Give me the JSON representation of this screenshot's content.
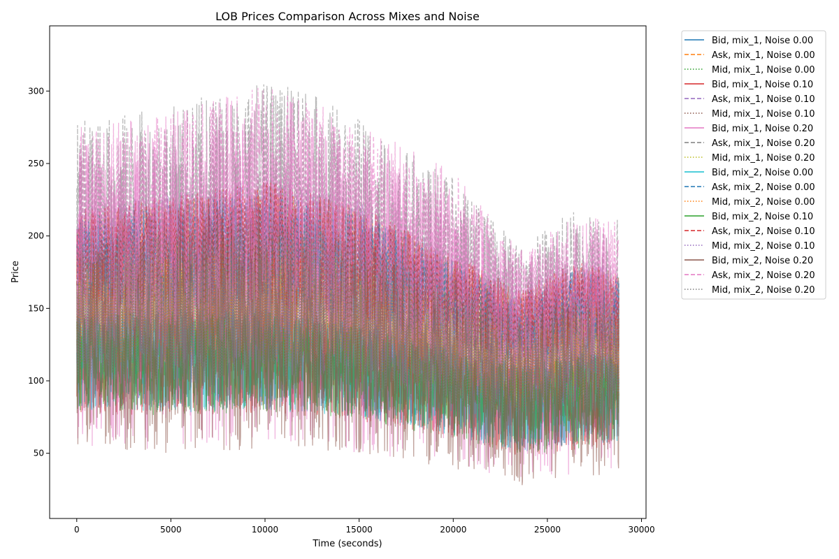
{
  "chart_data": {
    "type": "line",
    "title": "LOB Prices Comparison Across Mixes and Noise",
    "xlabel": "Time (seconds)",
    "ylabel": "Price",
    "xlim": [
      -1440,
      30240
    ],
    "ylim": [
      5,
      345
    ],
    "xticks": [
      0,
      5000,
      10000,
      15000,
      20000,
      25000,
      30000
    ],
    "yticks": [
      50,
      100,
      150,
      200,
      250,
      300
    ],
    "grid": false,
    "legend_position": "outside-right",
    "x_range": [
      0,
      28800
    ],
    "series": [
      {
        "name": "Bid, mix_1, Noise 0.00",
        "color": "#1f77b4",
        "dash": "solid",
        "envelope": {
          "x": [
            0,
            5000,
            10000,
            15000,
            20000,
            23500,
            26500,
            28800
          ],
          "low": [
            82,
            78,
            80,
            75,
            62,
            50,
            55,
            58
          ],
          "high": [
            150,
            150,
            150,
            140,
            125,
            112,
            120,
            118
          ]
        }
      },
      {
        "name": "Ask, mix_1, Noise 0.00",
        "color": "#ff7f0e",
        "dash": "dashed",
        "envelope": {
          "x": [
            0,
            5000,
            10000,
            15000,
            20000,
            23500,
            26500,
            28800
          ],
          "low": [
            150,
            150,
            150,
            140,
            125,
            112,
            120,
            118
          ],
          "high": [
            215,
            225,
            235,
            220,
            185,
            160,
            180,
            175
          ]
        }
      },
      {
        "name": "Mid, mix_1, Noise 0.00",
        "color": "#2ca02c",
        "dash": "dotted",
        "envelope": {
          "x": [
            0,
            5000,
            10000,
            15000,
            20000,
            23500,
            26500,
            28800
          ],
          "low": [
            112,
            110,
            112,
            105,
            92,
            80,
            88,
            86
          ],
          "high": [
            185,
            188,
            192,
            180,
            155,
            135,
            150,
            146
          ]
        }
      },
      {
        "name": "Bid, mix_1, Noise 0.10",
        "color": "#d62728",
        "dash": "solid",
        "envelope": {
          "x": [
            0,
            5000,
            10000,
            15000,
            20000,
            23500,
            26500,
            28800
          ],
          "low": [
            78,
            75,
            78,
            72,
            60,
            48,
            52,
            55
          ],
          "high": [
            145,
            148,
            148,
            138,
            122,
            110,
            118,
            116
          ]
        }
      },
      {
        "name": "Ask, mix_1, Noise 0.10",
        "color": "#9467bd",
        "dash": "dashed",
        "envelope": {
          "x": [
            0,
            5000,
            10000,
            15000,
            20000,
            23500,
            26500,
            28800
          ],
          "low": [
            152,
            152,
            152,
            142,
            126,
            114,
            122,
            120
          ],
          "high": [
            220,
            230,
            240,
            225,
            190,
            165,
            185,
            180
          ]
        }
      },
      {
        "name": "Mid, mix_1, Noise 0.10",
        "color": "#8c564b",
        "dash": "dotted",
        "envelope": {
          "x": [
            0,
            5000,
            10000,
            15000,
            20000,
            23500,
            26500,
            28800
          ],
          "low": [
            110,
            108,
            110,
            104,
            90,
            78,
            86,
            84
          ],
          "high": [
            188,
            190,
            195,
            182,
            158,
            138,
            152,
            148
          ]
        }
      },
      {
        "name": "Bid, mix_1, Noise 0.20",
        "color": "#e377c2",
        "dash": "solid",
        "envelope": {
          "x": [
            0,
            5000,
            10000,
            15000,
            20000,
            23500,
            26500,
            28800
          ],
          "low": [
            55,
            52,
            55,
            50,
            42,
            30,
            35,
            38
          ],
          "high": [
            265,
            270,
            280,
            265,
            225,
            185,
            210,
            205
          ]
        }
      },
      {
        "name": "Ask, mix_1, Noise 0.20",
        "color": "#7f7f7f",
        "dash": "dashed",
        "envelope": {
          "x": [
            0,
            5000,
            10000,
            15000,
            20000,
            23500,
            26500,
            28800
          ],
          "low": [
            130,
            128,
            130,
            122,
            105,
            88,
            98,
            96
          ],
          "high": [
            280,
            290,
            310,
            285,
            240,
            195,
            220,
            215
          ]
        }
      },
      {
        "name": "Mid, mix_1, Noise 0.20",
        "color": "#bcbd22",
        "dash": "dotted",
        "envelope": {
          "x": [
            0,
            5000,
            10000,
            15000,
            20000,
            23500,
            26500,
            28800
          ],
          "low": [
            105,
            102,
            105,
            98,
            86,
            72,
            80,
            78
          ],
          "high": [
            190,
            195,
            198,
            185,
            160,
            140,
            155,
            150
          ]
        }
      },
      {
        "name": "Bid, mix_2, Noise 0.00",
        "color": "#17becf",
        "dash": "solid",
        "envelope": {
          "x": [
            0,
            5000,
            10000,
            15000,
            20000,
            23500,
            26500,
            28800
          ],
          "low": [
            80,
            78,
            80,
            74,
            62,
            50,
            55,
            58
          ],
          "high": [
            148,
            150,
            150,
            140,
            124,
            112,
            120,
            118
          ]
        }
      },
      {
        "name": "Ask, mix_2, Noise 0.00",
        "color": "#1f77b4",
        "dash": "dashed",
        "envelope": {
          "x": [
            0,
            5000,
            10000,
            15000,
            20000,
            23500,
            26500,
            28800
          ],
          "low": [
            150,
            150,
            150,
            140,
            125,
            112,
            120,
            118
          ],
          "high": [
            212,
            222,
            232,
            218,
            183,
            158,
            178,
            173
          ]
        }
      },
      {
        "name": "Mid, mix_2, Noise 0.00",
        "color": "#ff7f0e",
        "dash": "dotted",
        "envelope": {
          "x": [
            0,
            5000,
            10000,
            15000,
            20000,
            23500,
            26500,
            28800
          ],
          "low": [
            112,
            110,
            112,
            105,
            92,
            80,
            88,
            86
          ],
          "high": [
            183,
            186,
            190,
            178,
            153,
            133,
            148,
            144
          ]
        }
      },
      {
        "name": "Bid, mix_2, Noise 0.10",
        "color": "#2ca02c",
        "dash": "solid",
        "envelope": {
          "x": [
            0,
            5000,
            10000,
            15000,
            20000,
            23500,
            26500,
            28800
          ],
          "low": [
            78,
            76,
            78,
            72,
            60,
            48,
            53,
            56
          ],
          "high": [
            146,
            148,
            148,
            138,
            122,
            110,
            118,
            116
          ]
        }
      },
      {
        "name": "Ask, mix_2, Noise 0.10",
        "color": "#d62728",
        "dash": "dashed",
        "envelope": {
          "x": [
            0,
            5000,
            10000,
            15000,
            20000,
            23500,
            26500,
            28800
          ],
          "low": [
            152,
            152,
            152,
            142,
            126,
            114,
            122,
            120
          ],
          "high": [
            218,
            228,
            238,
            222,
            188,
            163,
            183,
            178
          ]
        }
      },
      {
        "name": "Mid, mix_2, Noise 0.10",
        "color": "#9467bd",
        "dash": "dotted",
        "envelope": {
          "x": [
            0,
            5000,
            10000,
            15000,
            20000,
            23500,
            26500,
            28800
          ],
          "low": [
            110,
            108,
            110,
            104,
            90,
            78,
            86,
            84
          ],
          "high": [
            186,
            188,
            193,
            180,
            156,
            136,
            150,
            146
          ]
        }
      },
      {
        "name": "Bid, mix_2, Noise 0.20",
        "color": "#8c564b",
        "dash": "solid",
        "envelope": {
          "x": [
            0,
            5000,
            10000,
            15000,
            20000,
            23500,
            26500,
            28800
          ],
          "low": [
            52,
            50,
            52,
            48,
            40,
            25,
            33,
            36
          ],
          "high": [
            200,
            205,
            215,
            200,
            170,
            145,
            160,
            158
          ]
        }
      },
      {
        "name": "Ask, mix_2, Noise 0.20",
        "color": "#e377c2",
        "dash": "dashed",
        "envelope": {
          "x": [
            0,
            5000,
            10000,
            15000,
            20000,
            23500,
            26500,
            28800
          ],
          "low": [
            140,
            138,
            140,
            132,
            115,
            105,
            112,
            110
          ],
          "high": [
            275,
            285,
            305,
            280,
            245,
            190,
            215,
            210
          ]
        }
      },
      {
        "name": "Mid, mix_2, Noise 0.20",
        "color": "#7f7f7f",
        "dash": "dotted",
        "envelope": {
          "x": [
            0,
            5000,
            10000,
            15000,
            20000,
            23500,
            26500,
            28800
          ],
          "low": [
            100,
            98,
            100,
            95,
            82,
            70,
            78,
            76
          ],
          "high": [
            200,
            205,
            215,
            200,
            170,
            145,
            160,
            155
          ]
        }
      }
    ]
  }
}
